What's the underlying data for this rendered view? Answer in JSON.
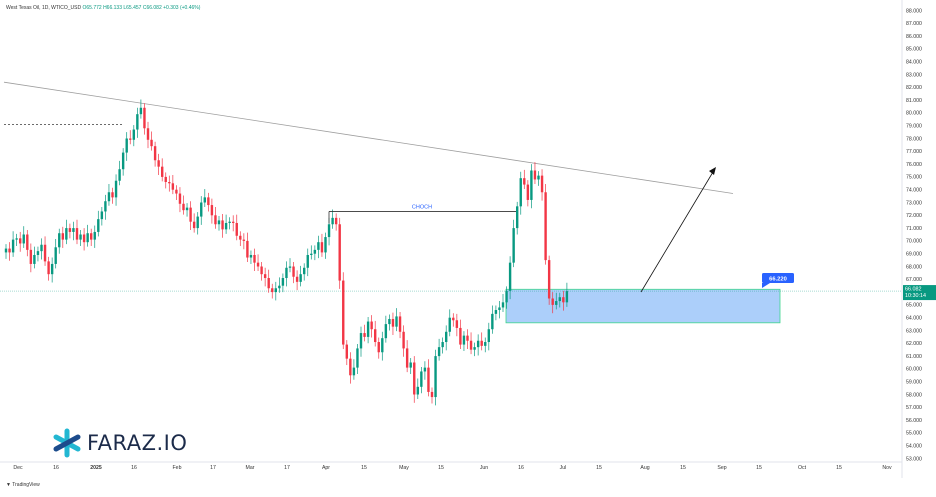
{
  "header": {
    "symbol": "West Texas Oil, 1D, WTICO_USD",
    "ohlc": "O65.772 H66.133 L65.457 C66.082 +0.303 (+0.46%)"
  },
  "watermark": {
    "brand": "FARAZ.IO"
  },
  "footer": {
    "tradingview": "TradingView"
  },
  "colors": {
    "up": "#089981",
    "down": "#f23645",
    "zone": "#2962ff",
    "zone_fill": "#7fb5f7",
    "trendline": "#9e9e9e"
  },
  "chart_data": {
    "type": "candlestick",
    "ylim": [
      53.0,
      88.0
    ],
    "y_ticks": [
      "88.000",
      "87.000",
      "86.000",
      "85.000",
      "84.000",
      "83.000",
      "82.000",
      "81.000",
      "80.000",
      "79.000",
      "78.000",
      "77.000",
      "76.000",
      "75.000",
      "74.000",
      "73.000",
      "72.000",
      "71.000",
      "70.000",
      "69.000",
      "68.000",
      "67.000",
      "66.000",
      "65.000",
      "64.000",
      "63.000",
      "62.000",
      "61.000",
      "60.000",
      "59.000",
      "58.000",
      "57.000",
      "56.000",
      "55.000",
      "54.000",
      "53.000"
    ],
    "x_ticks": [
      "Dec",
      "16",
      "2025",
      "16",
      "Feb",
      "17",
      "Mar",
      "17",
      "Apr",
      "15",
      "May",
      "15",
      "Jun",
      "16",
      "Jul",
      "15",
      "Aug",
      "15",
      "Sep",
      "15",
      "Oct",
      "15",
      "Nov"
    ],
    "closes": [
      69.4,
      69.1,
      70.1,
      70.2,
      69.8,
      70.5,
      69.3,
      68.2,
      68.9,
      69.2,
      69.7,
      68.4,
      67.4,
      68.2,
      69.5,
      70.6,
      70.1,
      71.0,
      70.7,
      71.0,
      70.1,
      70.5,
      69.9,
      70.6,
      70.1,
      70.7,
      71.7,
      72.3,
      73.1,
      73.8,
      73.4,
      74.7,
      75.6,
      76.9,
      78.0,
      77.9,
      78.7,
      79.9,
      80.4,
      78.8,
      77.9,
      77.4,
      76.3,
      75.8,
      75.0,
      74.6,
      74.5,
      74.0,
      73.7,
      72.9,
      72.4,
      72.6,
      71.5,
      71.0,
      71.9,
      73.0,
      73.4,
      72.8,
      72.0,
      71.3,
      71.6,
      70.9,
      71.4,
      71.5,
      71.4,
      70.4,
      70.1,
      70.0,
      68.7,
      68.9,
      68.3,
      68.0,
      67.4,
      67.1,
      66.3,
      66.0,
      66.3,
      66.5,
      67.1,
      67.9,
      68.0,
      67.2,
      66.8,
      67.4,
      67.9,
      68.9,
      69.0,
      69.3,
      69.9,
      69.1,
      70.3,
      71.3,
      71.8,
      71.3,
      66.9,
      61.9,
      60.8,
      59.5,
      60.1,
      61.6,
      62.8,
      62.5,
      63.7,
      63.1,
      62.1,
      61.3,
      62.4,
      63.5,
      63.9,
      63.3,
      64.1,
      62.9,
      61.6,
      60.1,
      60.5,
      58.0,
      58.6,
      59.8,
      60.1,
      58.2,
      57.8,
      61.0,
      61.7,
      62.1,
      62.9,
      64.0,
      63.8,
      63.2,
      61.9,
      62.6,
      62.2,
      61.5,
      61.7,
      62.2,
      61.8,
      62.1,
      63.1,
      64.3,
      64.6,
      64.8,
      65.2,
      66.1,
      68.3,
      71.0,
      72.7,
      74.9,
      74.4,
      73.2,
      75.5,
      74.8,
      75.1,
      73.8,
      68.5,
      65.5,
      65.0,
      65.3,
      65.6,
      65.2,
      66.08
    ],
    "last_price": "66.082",
    "countdown": "10:30:14",
    "choch": {
      "label": "CHOCH",
      "level": 72.3
    },
    "zone": {
      "label": "66.220",
      "top": 66.22,
      "bottom": 63.6
    },
    "prior_high_level": 79.1,
    "trendline": {
      "start": 82.4,
      "end": 73.7
    }
  }
}
